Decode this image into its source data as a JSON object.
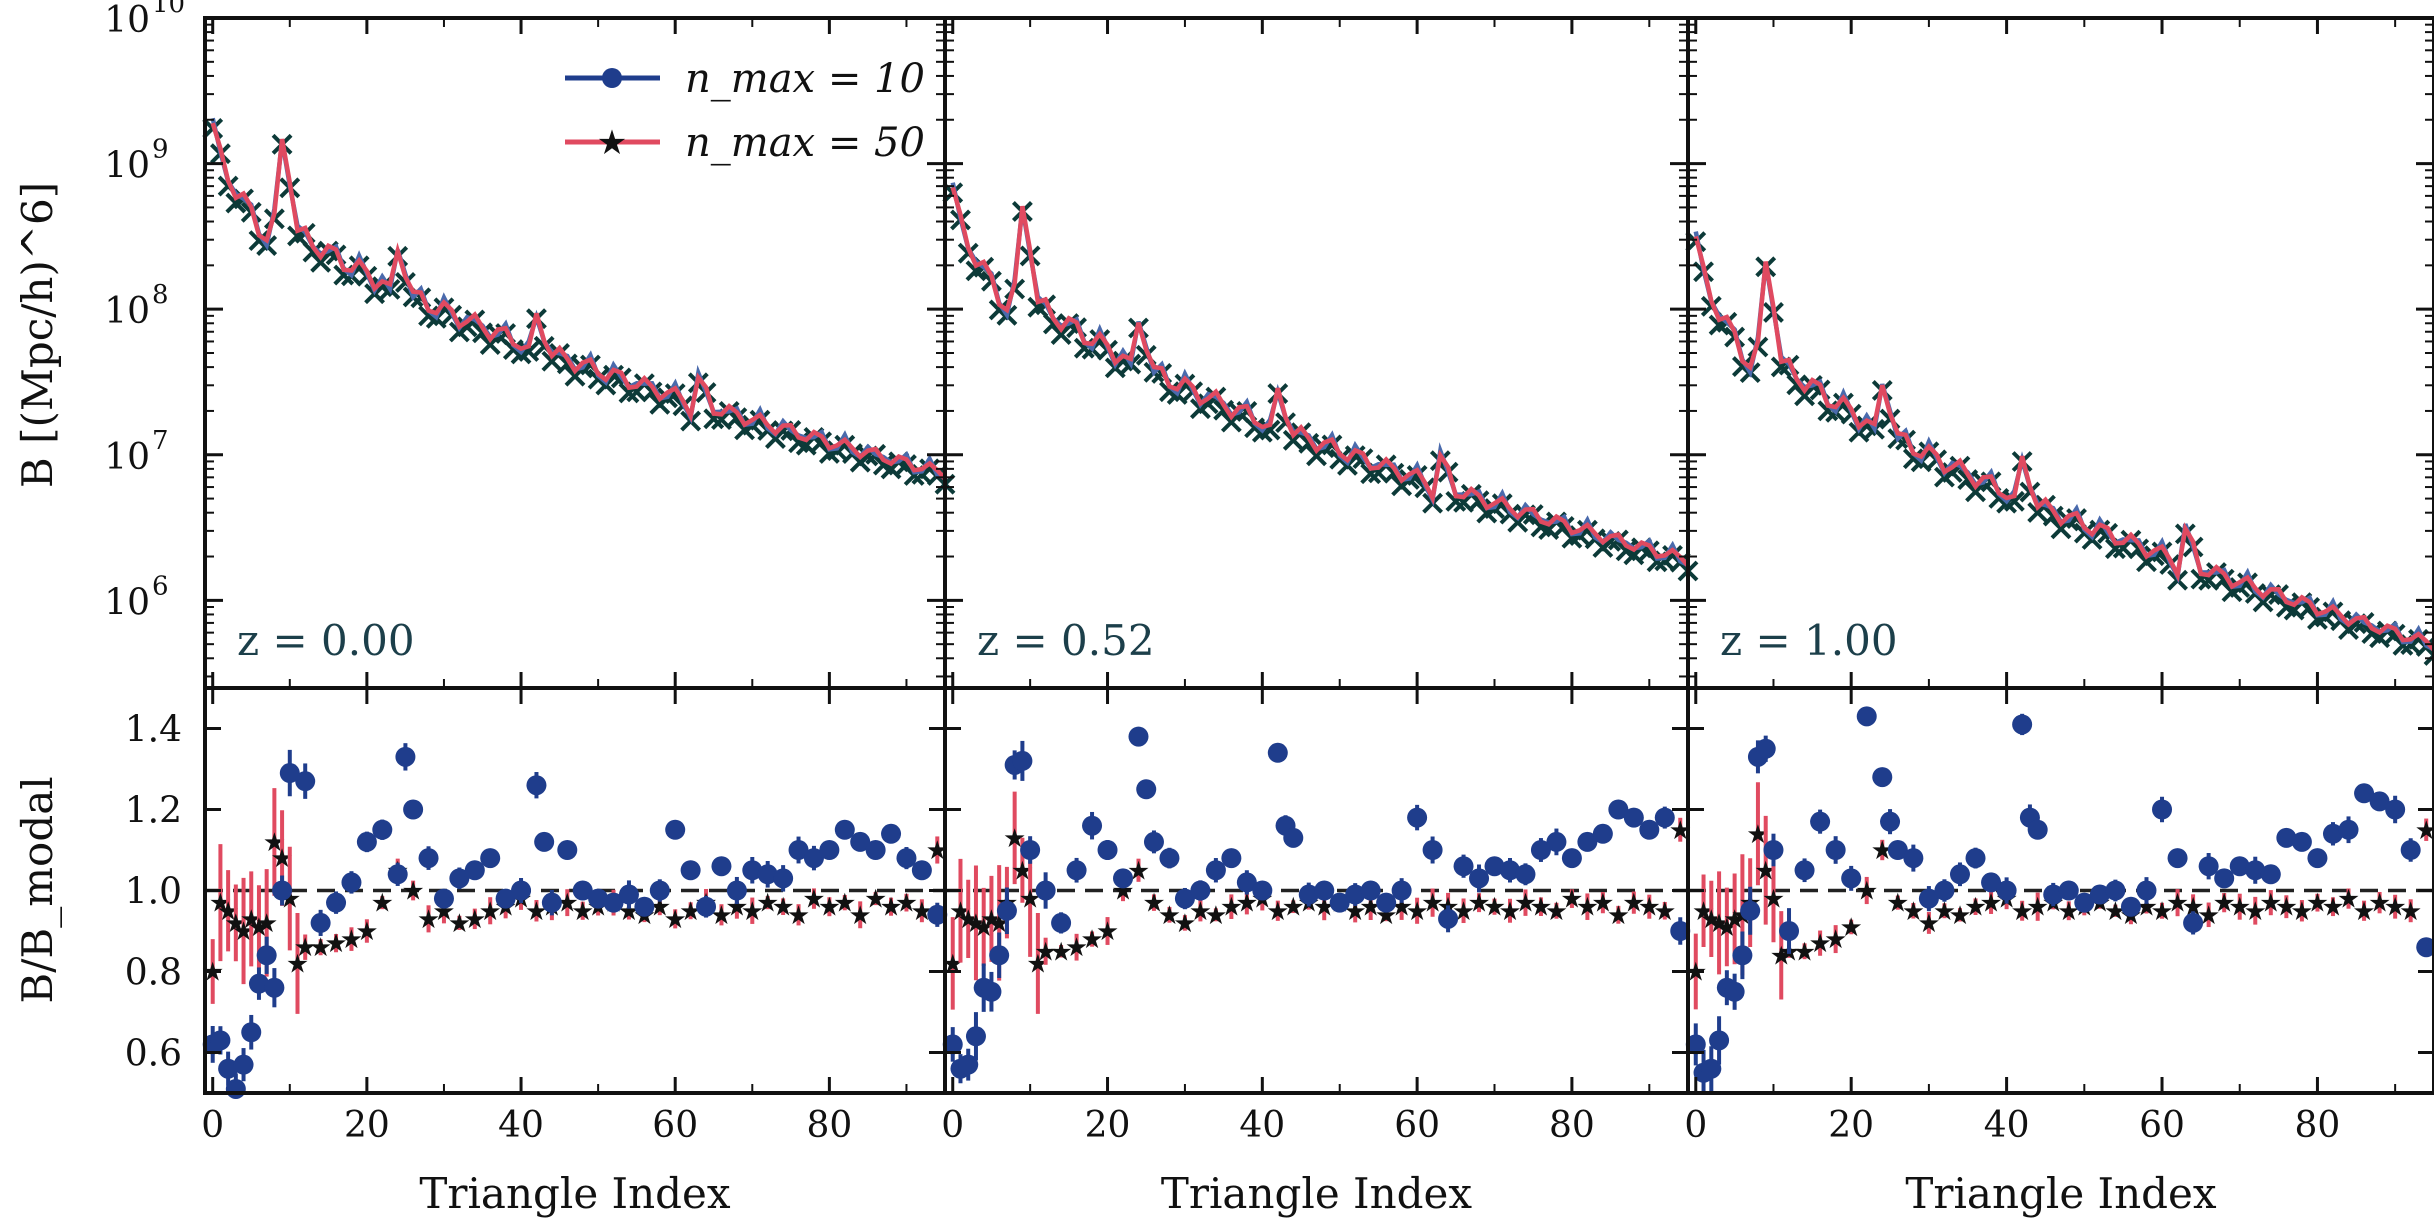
{
  "figure": {
    "legend": {
      "entries": [
        {
          "label": "n_max = 10",
          "color": "#1f3d8c",
          "marker": "circle"
        },
        {
          "label": "n_max = 50",
          "color": "#e04a60",
          "marker": "star"
        }
      ]
    },
    "axes": {
      "top_ylabel": "B [(Mpc/h)^6]",
      "bottom_ylabel": "B/B_modal",
      "xlabel": "Triangle Index",
      "top_yticks": [
        "10^6",
        "10^7",
        "10^8",
        "10^9",
        "10^10"
      ],
      "bottom_yticks": [
        "0.6",
        "0.8",
        "1.0",
        "1.2",
        "1.4"
      ],
      "xticks": [
        "0",
        "20",
        "40",
        "60",
        "80"
      ]
    },
    "colors": {
      "nmax10": "#1f3d8c",
      "nmax10_line": "#4a6aac",
      "nmax50": "#e04a60",
      "reference_marker": "#0c3a38",
      "reference_line": "#222222"
    }
  },
  "chart_data": [
    {
      "type": "line",
      "panel": "top",
      "redshift_label": "z = 0.00",
      "yscale": "log",
      "xlim": [
        -1,
        95
      ],
      "ylim": [
        250000,
        10000000000
      ],
      "xlabel": "Triangle Index",
      "ylabel": "B [(Mpc/h)^6]",
      "x_range": [
        0,
        95
      ],
      "series": [
        {
          "name": "n_max = 10",
          "envelope": {
            "start": 1800000000,
            "end": 7500000
          },
          "spikes": [
            [
              9,
              3.6
            ],
            [
              24,
              1.9
            ],
            [
              42,
              1.6
            ],
            [
              63,
              1.4
            ]
          ]
        },
        {
          "name": "n_max = 50",
          "envelope": {
            "start": 1800000000,
            "end": 7500000
          },
          "spikes": [
            [
              9,
              3.6
            ],
            [
              24,
              1.9
            ],
            [
              42,
              1.6
            ],
            [
              63,
              1.4
            ]
          ]
        }
      ]
    },
    {
      "type": "line",
      "panel": "top",
      "redshift_label": "z = 0.52",
      "yscale": "log",
      "xlim": [
        -1,
        95
      ],
      "ylim": [
        250000,
        10000000000
      ],
      "x_range": [
        0,
        95
      ],
      "series": [
        {
          "name": "n_max = 10",
          "envelope": {
            "start": 650000000,
            "end": 1900000
          },
          "spikes": [
            [
              9,
              3.8
            ],
            [
              24,
              2.0
            ],
            [
              42,
              1.7
            ],
            [
              63,
              1.5
            ]
          ]
        },
        {
          "name": "n_max = 50",
          "envelope": {
            "start": 650000000,
            "end": 1900000
          },
          "spikes": [
            [
              9,
              3.8
            ],
            [
              24,
              2.0
            ],
            [
              42,
              1.7
            ],
            [
              63,
              1.5
            ]
          ]
        }
      ]
    },
    {
      "type": "line",
      "panel": "top",
      "redshift_label": "z = 1.00",
      "yscale": "log",
      "xlim": [
        -1,
        95
      ],
      "ylim": [
        250000,
        10000000000
      ],
      "x_range": [
        0,
        95
      ],
      "series": [
        {
          "name": "n_max = 10",
          "envelope": {
            "start": 300000000,
            "end": 500000
          },
          "spikes": [
            [
              9,
              4.0
            ],
            [
              24,
              2.1
            ],
            [
              42,
              1.8
            ],
            [
              63,
              1.6
            ]
          ]
        },
        {
          "name": "n_max = 50",
          "envelope": {
            "start": 300000000,
            "end": 500000
          },
          "spikes": [
            [
              9,
              4.0
            ],
            [
              24,
              2.1
            ],
            [
              42,
              1.8
            ],
            [
              63,
              1.6
            ]
          ]
        }
      ]
    },
    {
      "type": "scatter",
      "panel": "bottom",
      "redshift_label": "z = 0.00",
      "xlim": [
        -1,
        95
      ],
      "ylim": [
        0.5,
        1.5
      ],
      "ylabel": "B/B_modal",
      "xlabel": "Triangle Index",
      "reference_line": 1.0,
      "series": [
        {
          "name": "n_max = 10",
          "x": [
            0,
            1,
            2,
            3,
            4,
            5,
            6,
            7,
            8,
            9,
            10,
            12,
            14,
            16,
            18,
            20,
            22,
            24,
            25,
            26,
            28,
            30,
            32,
            34,
            36,
            38,
            40,
            42,
            43,
            44,
            46,
            48,
            50,
            52,
            54,
            56,
            58,
            60,
            62,
            64,
            66,
            68,
            70,
            72,
            74,
            76,
            78,
            80,
            82,
            84,
            86,
            88,
            90,
            92,
            94
          ],
          "y": [
            0.62,
            0.63,
            0.56,
            0.51,
            0.57,
            0.65,
            0.77,
            0.84,
            0.76,
            1.0,
            1.29,
            1.27,
            0.92,
            0.97,
            1.02,
            1.12,
            1.15,
            1.04,
            1.33,
            1.2,
            1.08,
            0.98,
            1.03,
            1.05,
            1.08,
            0.98,
            1.0,
            1.26,
            1.12,
            0.97,
            1.1,
            1.0,
            0.98,
            0.97,
            0.99,
            0.96,
            1.0,
            1.15,
            1.05,
            0.96,
            1.06,
            1.0,
            1.05,
            1.04,
            1.03,
            1.1,
            1.08,
            1.1,
            1.15,
            1.12,
            1.1,
            1.14,
            1.08,
            1.05,
            0.94
          ]
        },
        {
          "name": "n_max = 50",
          "x": [
            0,
            1,
            2,
            3,
            4,
            5,
            6,
            7,
            8,
            9,
            10,
            11,
            12,
            14,
            16,
            18,
            20,
            22,
            24,
            26,
            28,
            30,
            32,
            34,
            36,
            38,
            40,
            42,
            44,
            46,
            48,
            50,
            52,
            54,
            56,
            58,
            60,
            62,
            64,
            66,
            68,
            70,
            72,
            74,
            76,
            78,
            80,
            82,
            84,
            86,
            88,
            90,
            92,
            94
          ],
          "y": [
            0.8,
            0.97,
            0.95,
            0.92,
            0.9,
            0.93,
            0.91,
            0.92,
            1.12,
            1.08,
            0.98,
            0.82,
            0.86,
            0.86,
            0.87,
            0.88,
            0.9,
            0.97,
            1.05,
            1.0,
            0.93,
            0.95,
            0.92,
            0.93,
            0.95,
            0.96,
            0.98,
            0.95,
            0.96,
            0.97,
            0.95,
            0.96,
            0.97,
            0.95,
            0.94,
            0.96,
            0.93,
            0.95,
            0.97,
            0.94,
            0.96,
            0.95,
            0.97,
            0.96,
            0.94,
            0.98,
            0.96,
            0.97,
            0.94,
            0.98,
            0.96,
            0.97,
            0.95,
            1.1
          ]
        }
      ]
    },
    {
      "type": "scatter",
      "panel": "bottom",
      "redshift_label": "z = 0.52",
      "xlim": [
        -1,
        95
      ],
      "ylim": [
        0.5,
        1.5
      ],
      "reference_line": 1.0,
      "series": [
        {
          "name": "n_max = 10",
          "x": [
            0,
            1,
            2,
            3,
            4,
            5,
            6,
            7,
            8,
            9,
            10,
            12,
            14,
            16,
            18,
            20,
            22,
            24,
            25,
            26,
            28,
            30,
            32,
            34,
            36,
            38,
            40,
            42,
            43,
            44,
            46,
            48,
            50,
            52,
            54,
            56,
            58,
            60,
            62,
            64,
            66,
            68,
            70,
            72,
            74,
            76,
            78,
            80,
            82,
            84,
            86,
            88,
            90,
            92,
            94
          ],
          "y": [
            0.62,
            0.56,
            0.57,
            0.64,
            0.76,
            0.75,
            0.84,
            0.95,
            1.31,
            1.32,
            1.1,
            1.0,
            0.92,
            1.05,
            1.16,
            1.1,
            1.03,
            1.38,
            1.25,
            1.12,
            1.08,
            0.98,
            1.0,
            1.05,
            1.08,
            1.02,
            1.0,
            1.34,
            1.16,
            1.13,
            0.99,
            1.0,
            0.97,
            0.99,
            1.0,
            0.97,
            1.0,
            1.18,
            1.1,
            0.93,
            1.06,
            1.03,
            1.06,
            1.05,
            1.04,
            1.1,
            1.12,
            1.08,
            1.12,
            1.14,
            1.2,
            1.18,
            1.15,
            1.18,
            0.9
          ]
        },
        {
          "name": "n_max = 50",
          "x": [
            0,
            1,
            2,
            3,
            4,
            5,
            6,
            7,
            8,
            9,
            10,
            11,
            12,
            14,
            16,
            18,
            20,
            22,
            24,
            26,
            28,
            30,
            32,
            34,
            36,
            38,
            40,
            42,
            44,
            46,
            48,
            50,
            52,
            54,
            56,
            58,
            60,
            62,
            64,
            66,
            68,
            70,
            72,
            74,
            76,
            78,
            80,
            82,
            84,
            86,
            88,
            90,
            92,
            94
          ],
          "y": [
            0.82,
            0.95,
            0.93,
            0.92,
            0.91,
            0.93,
            0.92,
            0.97,
            1.13,
            1.05,
            0.98,
            0.82,
            0.85,
            0.85,
            0.86,
            0.88,
            0.9,
            1.0,
            1.05,
            0.97,
            0.94,
            0.92,
            0.95,
            0.94,
            0.96,
            0.97,
            0.98,
            0.95,
            0.96,
            0.97,
            0.96,
            0.97,
            0.95,
            0.96,
            0.94,
            0.96,
            0.95,
            0.97,
            0.96,
            0.95,
            0.97,
            0.96,
            0.95,
            0.97,
            0.96,
            0.95,
            0.98,
            0.96,
            0.97,
            0.94,
            0.97,
            0.96,
            0.95,
            1.15
          ]
        }
      ]
    },
    {
      "type": "scatter",
      "panel": "bottom",
      "redshift_label": "z = 1.00",
      "xlim": [
        -1,
        95
      ],
      "ylim": [
        0.5,
        1.5
      ],
      "reference_line": 1.0,
      "series": [
        {
          "name": "n_max = 10",
          "x": [
            0,
            1,
            2,
            3,
            4,
            5,
            6,
            7,
            8,
            9,
            10,
            12,
            14,
            16,
            18,
            20,
            22,
            24,
            25,
            26,
            28,
            30,
            32,
            34,
            36,
            38,
            40,
            42,
            43,
            44,
            46,
            48,
            50,
            52,
            54,
            56,
            58,
            60,
            62,
            64,
            66,
            68,
            70,
            72,
            74,
            76,
            78,
            80,
            82,
            84,
            86,
            88,
            90,
            92,
            94
          ],
          "y": [
            0.62,
            0.55,
            0.56,
            0.63,
            0.76,
            0.75,
            0.84,
            0.95,
            1.33,
            1.35,
            1.1,
            0.9,
            1.05,
            1.17,
            1.1,
            1.03,
            1.43,
            1.28,
            1.17,
            1.1,
            1.08,
            0.98,
            1.0,
            1.04,
            1.08,
            1.02,
            1.0,
            1.41,
            1.18,
            1.15,
            0.99,
            1.0,
            0.97,
            0.99,
            1.0,
            0.96,
            1.0,
            1.2,
            1.08,
            0.92,
            1.06,
            1.03,
            1.06,
            1.05,
            1.04,
            1.13,
            1.12,
            1.08,
            1.14,
            1.15,
            1.24,
            1.22,
            1.2,
            1.1,
            0.86
          ]
        },
        {
          "name": "n_max = 50",
          "x": [
            0,
            1,
            2,
            3,
            4,
            5,
            6,
            7,
            8,
            9,
            10,
            11,
            12,
            14,
            16,
            18,
            20,
            22,
            24,
            26,
            28,
            30,
            32,
            34,
            36,
            38,
            40,
            42,
            44,
            46,
            48,
            50,
            52,
            54,
            56,
            58,
            60,
            62,
            64,
            66,
            68,
            70,
            72,
            74,
            76,
            78,
            80,
            82,
            84,
            86,
            88,
            90,
            92,
            94
          ],
          "y": [
            0.8,
            0.95,
            0.93,
            0.92,
            0.91,
            0.93,
            0.94,
            0.97,
            1.14,
            1.05,
            0.98,
            0.84,
            0.85,
            0.85,
            0.87,
            0.88,
            0.91,
            1.0,
            1.1,
            0.97,
            0.95,
            0.92,
            0.95,
            0.94,
            0.96,
            0.97,
            0.98,
            0.95,
            0.96,
            0.97,
            0.95,
            0.96,
            0.97,
            0.95,
            0.94,
            0.96,
            0.95,
            0.97,
            0.96,
            0.94,
            0.97,
            0.96,
            0.95,
            0.97,
            0.96,
            0.95,
            0.97,
            0.96,
            0.98,
            0.95,
            0.97,
            0.96,
            0.95,
            1.15
          ]
        }
      ]
    }
  ]
}
